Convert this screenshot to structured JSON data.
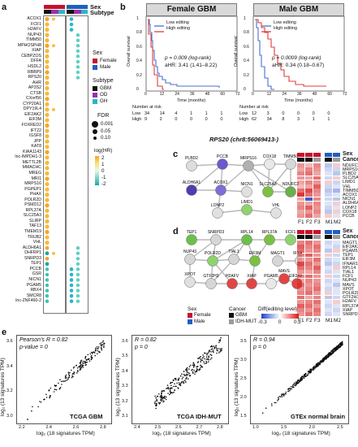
{
  "panel_labels": {
    "a": "a",
    "b": "b",
    "c": "c",
    "d": "d",
    "e": "e"
  },
  "panel_a": {
    "genes": [
      "ACOX1",
      "FCF1",
      "H2AFV",
      "NUP43",
      "TIMM50",
      "MPHOSPH8",
      "XIAP",
      "CEBPZOS",
      "DFFA",
      "HSDL2",
      "RBBP9",
      "RPS20",
      "AHR",
      "AP3S2",
      "CTSB",
      "CXorf56",
      "CYP20A1",
      "DPY19L4",
      "EIF2AK2",
      "EIF3M",
      "FOXRED2",
      "IFT22",
      "IGSF8",
      "JPP",
      "KAT8",
      "KIAA1143",
      "lnc-IMPDH1-3",
      "METTL2B",
      "MMACHC",
      "MREG",
      "MRI1",
      "MRPS16",
      "PGPEP1",
      "PHAX",
      "POLR2D",
      "PSMD12",
      "RPL37A",
      "SLC25A3",
      "SLIRP",
      "TAF13",
      "TMEM19",
      "TRUB2",
      "VHL",
      "ALDH6A1",
      "DHFRP1",
      "SNRPD3",
      "TEP1",
      "PCCB",
      "GSR",
      "NICN1",
      "PGAM5",
      "RBX4",
      "SMCR8",
      "lnc-ZNF460-2"
    ],
    "legend_sex_title": "Sex",
    "legend_sex": [
      {
        "label": "Female",
        "color": "#c8102e"
      },
      {
        "label": "Male",
        "color": "#1f5fbf"
      }
    ],
    "legend_subtype_title": "Subtype",
    "legend_subtype": [
      {
        "label": "GBM",
        "color": "#111111"
      },
      {
        "label": "OD",
        "color": "#9b2fae"
      },
      {
        "label": "GH",
        "color": "#29b6c9"
      }
    ],
    "legend_fdr_title": "FDR",
    "legend_fdr": [
      "0.001",
      "0.05",
      "0.10"
    ],
    "legend_hr_title": "log(HR)",
    "legend_hr_ticks": [
      "2",
      "1",
      "0",
      "-1",
      "-2"
    ],
    "header_labels": {
      "sex": "Sex",
      "subtype": "Subtype"
    }
  },
  "panel_b": {
    "female": {
      "title": "Female GBM",
      "legend": [
        "Low editing",
        "High editing"
      ],
      "pvalue": "p = 0.009 (log-rank)",
      "ahr": "aHR: 3.41 (1.41–8.22)",
      "ylabel": "Overall survival",
      "xlabel": "Time (months)",
      "xticks": [
        "0",
        "12",
        "24",
        "36",
        "48",
        "60",
        "72"
      ],
      "yticks": [
        "0",
        "0.2",
        "0.4",
        "0.6",
        "0.8",
        "1"
      ],
      "risk_title": "Number at risk",
      "risk": [
        {
          "label": "Low",
          "values": [
            "34",
            "14",
            "4",
            "1",
            "1",
            "1",
            ""
          ]
        },
        {
          "label": "High",
          "values": [
            "9",
            "2",
            "0",
            "0",
            "0",
            "0",
            ""
          ]
        }
      ]
    },
    "male": {
      "title": "Male GBM",
      "legend": [
        "Low editing",
        "High editing"
      ],
      "pvalue": "p = 0.0009 (log-rank)",
      "ahr": "aHR: 0.34 (0.18–0.67)",
      "ylabel": "Overall survival",
      "xlabel": "Time (months)",
      "xticks": [
        "0",
        "12",
        "24",
        "36",
        "48",
        "60",
        "72"
      ],
      "yticks": [
        "0",
        "0.2",
        "0.4",
        "0.6",
        "0.8",
        "1"
      ],
      "risk_title": "Number at risk",
      "risk": [
        {
          "label": "Low",
          "values": [
            "12",
            "3",
            "0",
            "0",
            "0",
            "0",
            ""
          ]
        },
        {
          "label": "High",
          "values": [
            "62",
            "34",
            "8",
            "3",
            "1",
            "1",
            ""
          ]
        }
      ]
    },
    "caption": "RPS20 (chr8:56069413-)",
    "colors": {
      "low": "#4a6fd6",
      "high": "#e33b3b"
    }
  },
  "panel_c": {
    "nodes": [
      "PLBD2",
      "PCCB",
      "MRPS16",
      "COX18",
      "TIMM50",
      "ALDH6A1",
      "ACOX1",
      "NICN1",
      "SLC25A3",
      "NDUFC2",
      "LONP2",
      "LIMD1",
      "VHL"
    ],
    "heat_header": {
      "sex": "Sex",
      "cancer": "Cancer"
    },
    "heat_genes": [
      "NDUFC2",
      "MRPS16",
      "PLBD2",
      "SLC25A3",
      "LIMD1",
      "VHL",
      "TIMM50",
      "ACOX1",
      "NICN1",
      "ALDH6A1",
      "LONP2",
      "COX18",
      "PCCB"
    ],
    "heat_cols": [
      "F1",
      "F2",
      "F3",
      "M1",
      "M2"
    ]
  },
  "panel_d": {
    "nodes": [
      "TEP1",
      "SNRPD3",
      "RPL14",
      "RPL37A",
      "FCF1",
      "NUP43",
      "POLR2D",
      "TIAL1",
      "EIF3M",
      "MAGT1",
      "IFNAR1",
      "XPOT",
      "GTF2H3",
      "H2AFV",
      "XIAP",
      "PGAM5",
      "MAVS",
      "EIF2AK2"
    ],
    "heat_header": {
      "sex": "Sex",
      "cancer": "Cancer"
    },
    "heat_genes": [
      "MAGT1",
      "EIF2AK2",
      "PGAM5",
      "TEP1",
      "EIF3M",
      "IFNAR1",
      "RPL14",
      "TIAL1",
      "FCF1",
      "NUP43",
      "MAVS",
      "XPOT",
      "POLR2D",
      "GTF2H3",
      "H2AFV",
      "RPL37A",
      "XIAP",
      "SNRPD3"
    ],
    "heat_cols": [
      "F1",
      "F2",
      "F3",
      "M1",
      "M2"
    ],
    "legend_sex_title": "Sex",
    "legend_sex": [
      {
        "label": "Female",
        "color": "#c8102e"
      },
      {
        "label": "Male",
        "color": "#1f5fbf"
      }
    ],
    "legend_cancer_title": "Cancer",
    "legend_cancer": [
      {
        "label": "GBM",
        "color": "#111111"
      },
      {
        "label": "IDH-MUT",
        "color": "#9a9a9a"
      }
    ],
    "legend_diff_title": "Diff(editing level)",
    "legend_diff_ticks": [
      "-0.3",
      "0",
      "0.3"
    ]
  },
  "panel_e": {
    "plots": [
      {
        "title": "TCGA GBM",
        "stat1": "Pearson's R = 0.82",
        "stat2": "p-value = 0",
        "xticks": [
          "2.2",
          "2.4",
          "2.6",
          "2.8"
        ],
        "yticks": [
          "3.0",
          "3.2",
          "3.4",
          "3.6"
        ]
      },
      {
        "title": "TCGA IDH-MUT",
        "stat1": "R = 0.82",
        "stat2": "p = 0",
        "xticks": [
          "2.4",
          "2.5",
          "2.6",
          "2.7",
          "2.8"
        ],
        "yticks": [
          "3.1",
          "3.2",
          "3.3",
          "3.4",
          "3.5",
          "3.6"
        ]
      },
      {
        "title": "GTEx normal brain",
        "stat1": "R = 0.94",
        "stat2": "p = 0",
        "xticks": [
          "1.0",
          "1.5",
          "2.0",
          "2.5"
        ],
        "yticks": [
          "1.5",
          "2.0",
          "2.5",
          "3.0",
          "3.5"
        ]
      }
    ],
    "xlabel": "log₂ (18 signatures TPM)",
    "ylabel": "log₂ (13 signatures TPM)"
  }
}
